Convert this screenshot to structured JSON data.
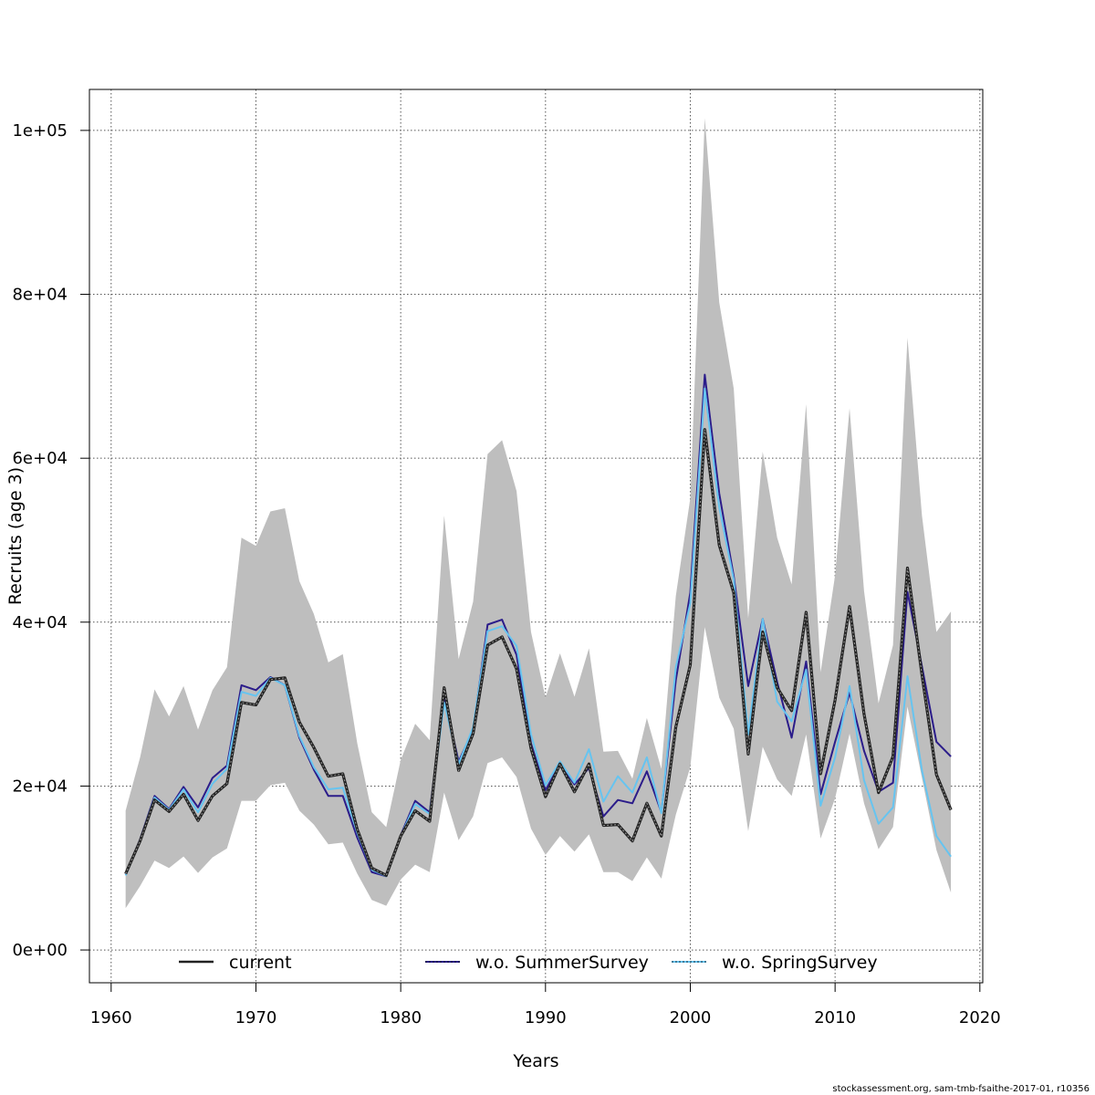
{
  "chart_data": {
    "type": "line",
    "xlabel": "Years",
    "ylabel": "Recruits (age 3)",
    "xlim": [
      1958.5,
      2020.2
    ],
    "ylim": [
      -4000,
      105000
    ],
    "grid": true,
    "legend_position": "bottom",
    "x_ticks": [
      1960,
      1970,
      1980,
      1990,
      2000,
      2010,
      2020
    ],
    "x_tick_labels": [
      "1960",
      "1970",
      "1980",
      "1990",
      "2000",
      "2010",
      "2020"
    ],
    "y_ticks": [
      0,
      20000,
      40000,
      60000,
      80000,
      100000
    ],
    "y_tick_labels": [
      "0e+00",
      "2e+04",
      "4e+04",
      "6e+04",
      "8e+04",
      "1e+05"
    ],
    "x": [
      1961,
      1962,
      1963,
      1964,
      1965,
      1966,
      1967,
      1968,
      1969,
      1970,
      1971,
      1972,
      1973,
      1974,
      1975,
      1976,
      1977,
      1978,
      1979,
      1980,
      1981,
      1982,
      1983,
      1984,
      1985,
      1986,
      1987,
      1988,
      1989,
      1990,
      1991,
      1992,
      1993,
      1994,
      1995,
      1996,
      1997,
      1998,
      1999,
      2000,
      2001,
      2002,
      2003,
      2004,
      2005,
      2006,
      2007,
      2008,
      2009,
      2010,
      2011,
      2012,
      2013,
      2014,
      2015,
      2016,
      2017,
      2018
    ],
    "band": {
      "upper": [
        17000,
        23500,
        31800,
        28500,
        32200,
        26900,
        31700,
        34500,
        50300,
        49300,
        53500,
        53900,
        45000,
        41000,
        35100,
        36100,
        25200,
        16800,
        15000,
        23200,
        27600,
        25600,
        53000,
        35500,
        42500,
        60500,
        62200,
        56000,
        38800,
        30800,
        36200,
        30900,
        36800,
        24200,
        24300,
        20900,
        28300,
        22100,
        43200,
        55100,
        101500,
        79000,
        68500,
        40500,
        60800,
        50300,
        44600,
        66600,
        33900,
        45700,
        66100,
        43800,
        30100,
        37200,
        74700,
        53000,
        38800,
        41300
      ]
    },
    "band_lower": [
      5100,
      7800,
      10900,
      10000,
      11400,
      9400,
      11300,
      12400,
      18200,
      18200,
      20100,
      20400,
      17000,
      15300,
      12900,
      13100,
      9300,
      6100,
      5400,
      8600,
      10400,
      9500,
      19200,
      13400,
      16300,
      22800,
      23500,
      21100,
      14800,
      11600,
      13900,
      12000,
      14100,
      9500,
      9500,
      8400,
      11300,
      8700,
      16500,
      22300,
      39400,
      30800,
      27000,
      14500,
      24800,
      20800,
      18800,
      26300,
      13600,
      18500,
      26400,
      17900,
      12300,
      15000,
      29700,
      21000,
      12200,
      7000
    ],
    "series": [
      {
        "name": "current",
        "color": "#222222",
        "values": [
          9300,
          13300,
          18300,
          16900,
          19000,
          15800,
          18800,
          20300,
          30200,
          29900,
          33000,
          33200,
          27800,
          24700,
          21200,
          21500,
          14700,
          10000,
          9100,
          13900,
          17000,
          15700,
          32000,
          21900,
          26400,
          37200,
          38200,
          34300,
          24600,
          18700,
          22700,
          19300,
          22700,
          15200,
          15300,
          13300,
          17900,
          13900,
          27200,
          34800,
          63500,
          49400,
          43600,
          23900,
          38800,
          32000,
          29200,
          41200,
          21500,
          30500,
          41900,
          28800,
          19200,
          23600,
          46600,
          33600,
          21400,
          17100
        ]
      },
      {
        "name": "w.o. SummerSurvey",
        "color": "#2b1c8a",
        "values": [
          9200,
          13500,
          18800,
          17200,
          19900,
          17400,
          21000,
          22500,
          32300,
          31700,
          33300,
          32300,
          25900,
          22000,
          18800,
          18800,
          13700,
          9500,
          9000,
          14000,
          18200,
          16800,
          30800,
          23000,
          26800,
          39700,
          40300,
          36000,
          25200,
          19500,
          22700,
          20200,
          22200,
          16300,
          18300,
          17900,
          21800,
          16800,
          32900,
          43600,
          70200,
          55700,
          45600,
          32200,
          40400,
          32700,
          25900,
          35200,
          19000,
          25400,
          31400,
          24300,
          19300,
          20400,
          43700,
          34600,
          25400,
          23600
        ]
      },
      {
        "name": "w.o. SpringSurvey",
        "color": "#66c4f0",
        "values": [
          9100,
          13400,
          18600,
          17100,
          19600,
          16800,
          20300,
          22100,
          31500,
          31000,
          33200,
          32300,
          26100,
          22300,
          19600,
          19800,
          14300,
          9800,
          9000,
          13900,
          17800,
          16600,
          30200,
          22700,
          27200,
          38900,
          39500,
          37100,
          26300,
          20100,
          23000,
          20400,
          24500,
          18100,
          21200,
          19200,
          23500,
          16700,
          34500,
          42300,
          68500,
          54000,
          45200,
          26300,
          40400,
          30300,
          27900,
          34200,
          17600,
          23500,
          32200,
          20700,
          15400,
          17400,
          33400,
          21900,
          13900,
          11400
        ]
      }
    ]
  },
  "credit": "stockassessment.org, sam-tmb-fsaithe-2017-01, r10356"
}
